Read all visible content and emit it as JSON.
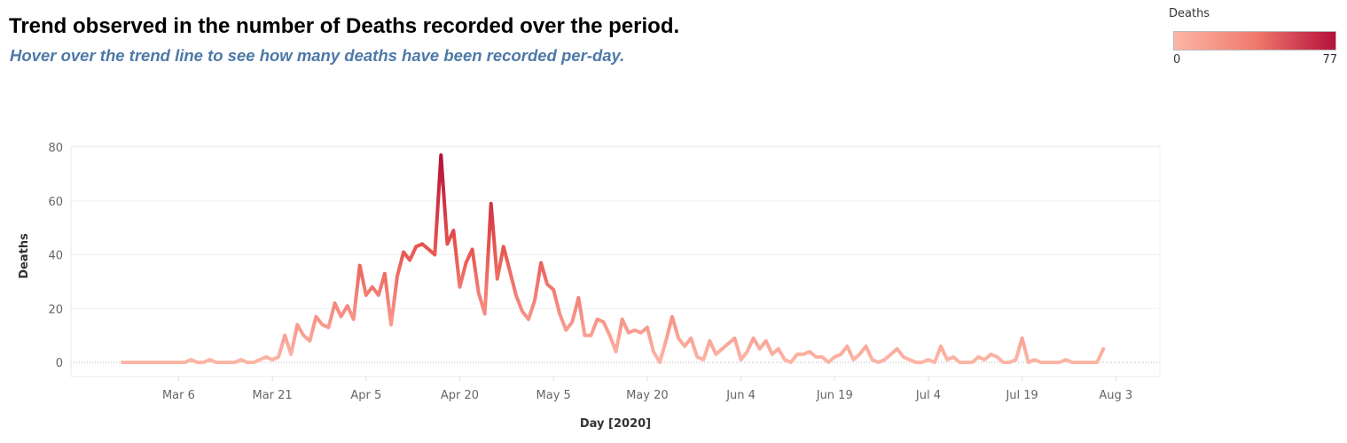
{
  "header": {
    "title": "Trend observed in the number of Deaths recorded over the period.",
    "subtitle": "Hover over the trend line to see how many deaths have been recorded per-day."
  },
  "legend": {
    "title": "Deaths",
    "min_label": "0",
    "max_label": "77",
    "color_low": "#fcb6a6",
    "color_high": "#b5103a"
  },
  "chart_data": {
    "type": "line",
    "xlabel": "Day [2020]",
    "ylabel": "Deaths",
    "ylim": [
      0,
      80
    ],
    "x_start": "2020-02-26",
    "x_ticks": [
      "Mar 6",
      "Mar 21",
      "Apr 5",
      "Apr 20",
      "May 5",
      "May 20",
      "Jun 4",
      "Jun 19",
      "Jul 4",
      "Jul 19",
      "Aug 3"
    ],
    "y_ticks": [
      "0",
      "20",
      "40",
      "60",
      "80"
    ],
    "grid": true,
    "color_scale": [
      "#fcb6a6",
      "#b5103a"
    ],
    "values": [
      0,
      0,
      0,
      0,
      0,
      0,
      0,
      0,
      0,
      0,
      0,
      1,
      0,
      0,
      1,
      0,
      0,
      0,
      0,
      1,
      0,
      0,
      1,
      2,
      1,
      2,
      10,
      3,
      14,
      10,
      8,
      17,
      14,
      13,
      22,
      17,
      21,
      16,
      36,
      25,
      28,
      25,
      33,
      14,
      32,
      41,
      38,
      43,
      44,
      42,
      40,
      77,
      44,
      49,
      28,
      37,
      42,
      26,
      18,
      59,
      31,
      43,
      34,
      25,
      19,
      16,
      23,
      37,
      29,
      27,
      18,
      12,
      15,
      24,
      10,
      10,
      16,
      15,
      10,
      4,
      16,
      11,
      12,
      11,
      13,
      4,
      0,
      8,
      17,
      9,
      6,
      9,
      2,
      1,
      8,
      3,
      5,
      7,
      9,
      1,
      4,
      9,
      5,
      8,
      3,
      5,
      1,
      0,
      3,
      3,
      4,
      2,
      2,
      0,
      2,
      3,
      6,
      1,
      3,
      6,
      1,
      0,
      1,
      3,
      5,
      2,
      1,
      0,
      0,
      1,
      0,
      6,
      1,
      2,
      0,
      0,
      0,
      2,
      1,
      3,
      2,
      0,
      0,
      1,
      9,
      0,
      1,
      0,
      0,
      0,
      0,
      1,
      0,
      0,
      0,
      0,
      0,
      5
    ]
  }
}
